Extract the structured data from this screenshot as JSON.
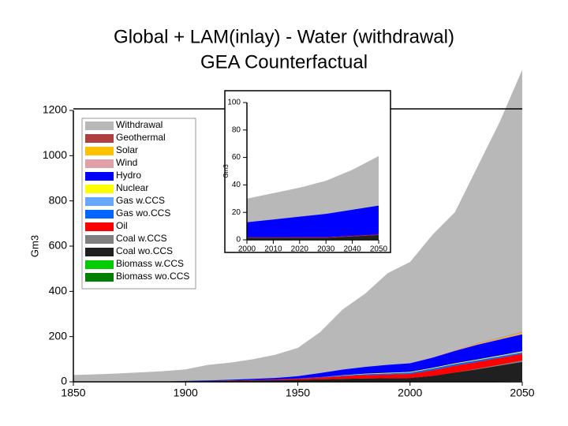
{
  "chart_data": [
    {
      "type": "area",
      "title": [
        "Global + LAM(inlay) - Water (withdrawal)",
        "GEA Counterfactual"
      ],
      "y_label": "Gm3",
      "x": [
        1850,
        1860,
        1870,
        1880,
        1890,
        1900,
        1910,
        1920,
        1930,
        1940,
        1950,
        1960,
        1970,
        1980,
        1990,
        2000,
        2010,
        2020,
        2030,
        2040,
        2050
      ],
      "xlim": [
        1850,
        2050
      ],
      "xticks": [
        1850,
        1900,
        1950,
        2000,
        2050
      ],
      "ylim": [
        0,
        1200
      ],
      "yticks": [
        0,
        200,
        400,
        600,
        800,
        1000,
        1200
      ],
      "legend": true,
      "series": [
        {
          "name": "Withdrawal",
          "color": "#b8b8b8",
          "stack": false,
          "values": [
            30,
            33,
            37,
            42,
            47,
            55,
            75,
            85,
            100,
            120,
            150,
            220,
            320,
            390,
            480,
            530,
            650,
            750,
            950,
            1150,
            1380
          ]
        },
        {
          "name": "Geothermal",
          "color": "#b04040",
          "values": [
            0,
            0,
            0,
            0,
            0,
            0,
            0,
            0,
            0,
            0,
            0,
            0,
            0,
            0,
            0,
            0,
            0,
            0,
            1,
            1,
            1
          ]
        },
        {
          "name": "Solar",
          "color": "#ffc000",
          "values": [
            0,
            0,
            0,
            0,
            0,
            0,
            0,
            0,
            0,
            0,
            0,
            0,
            0,
            0,
            0,
            0,
            0,
            1,
            2,
            3,
            5
          ]
        },
        {
          "name": "Wind",
          "color": "#e0a0a8",
          "values": [
            0,
            0,
            0,
            0,
            0,
            0,
            0,
            0,
            0,
            0,
            0,
            0,
            0,
            0,
            0,
            0,
            1,
            2,
            3,
            3,
            4
          ]
        },
        {
          "name": "Hydro",
          "color": "#0000ff",
          "values": [
            0,
            0,
            0,
            0,
            0,
            1,
            2,
            3,
            5,
            7,
            10,
            18,
            25,
            30,
            35,
            38,
            45,
            55,
            65,
            70,
            75
          ]
        },
        {
          "name": "Nuclear",
          "color": "#ffff00",
          "values": [
            0,
            0,
            0,
            0,
            0,
            0,
            0,
            0,
            0,
            0,
            0,
            0,
            1,
            2,
            3,
            3,
            3,
            3,
            3,
            3,
            3
          ]
        },
        {
          "name": "Gas w.CCS",
          "color": "#66a8ff",
          "values": [
            0,
            0,
            0,
            0,
            0,
            0,
            0,
            0,
            0,
            0,
            0,
            0,
            0,
            0,
            0,
            0,
            0,
            0,
            1,
            2,
            3
          ]
        },
        {
          "name": "Gas wo.CCS",
          "color": "#0066ff",
          "values": [
            0,
            0,
            0,
            0,
            0,
            0,
            0,
            0,
            0,
            0,
            1,
            2,
            3,
            4,
            5,
            6,
            8,
            8,
            7,
            6,
            5
          ]
        },
        {
          "name": "Oil",
          "color": "#ff0000",
          "values": [
            0,
            0,
            0,
            0,
            0,
            0,
            0,
            1,
            2,
            3,
            5,
            8,
            12,
            15,
            16,
            18,
            25,
            30,
            30,
            30,
            30
          ]
        },
        {
          "name": "Coal w.CCS",
          "color": "#808080",
          "values": [
            0,
            0,
            0,
            0,
            0,
            0,
            0,
            0,
            0,
            0,
            0,
            0,
            0,
            0,
            0,
            0,
            0,
            0,
            2,
            4,
            6
          ]
        },
        {
          "name": "Coal wo.CCS",
          "color": "#202020",
          "values": [
            0,
            0,
            0,
            0,
            0,
            2,
            3,
            4,
            5,
            6,
            8,
            10,
            12,
            14,
            15,
            16,
            25,
            40,
            55,
            70,
            85
          ]
        },
        {
          "name": "Biomass w.CCS",
          "color": "#00cc00",
          "values": [
            0,
            0,
            0,
            0,
            0,
            0,
            0,
            0,
            0,
            0,
            0,
            0,
            0,
            0,
            0,
            0,
            0,
            0,
            0,
            1,
            2
          ]
        },
        {
          "name": "Biomass wo.CCS",
          "color": "#008000",
          "values": [
            1,
            1,
            1,
            1,
            1,
            1,
            1,
            1,
            1,
            1,
            1,
            1,
            1,
            1,
            1,
            1,
            1,
            1,
            1,
            1,
            1
          ]
        }
      ]
    },
    {
      "type": "area",
      "y_label": "Gm3",
      "x": [
        2000,
        2010,
        2020,
        2030,
        2040,
        2050
      ],
      "xlim": [
        2000,
        2050
      ],
      "xticks": [
        2000,
        2010,
        2020,
        2030,
        2040,
        2050
      ],
      "ylim": [
        0,
        100
      ],
      "yticks": [
        0,
        20,
        40,
        60,
        80,
        100
      ],
      "legend": false,
      "series": [
        {
          "name": "Withdrawal",
          "color": "#b8b8b8",
          "stack": false,
          "values": [
            30,
            34,
            38,
            43,
            51,
            61
          ]
        },
        {
          "name": "Hydro",
          "color": "#0000ff",
          "values": [
            11,
            13,
            15,
            17,
            19,
            21
          ]
        },
        {
          "name": "Oil",
          "color": "#ff0000",
          "values": [
            0.3,
            0.3,
            0.4,
            0.4,
            0.4,
            0.4
          ]
        },
        {
          "name": "Coal wo.CCS",
          "color": "#202020",
          "values": [
            1,
            1,
            1,
            1,
            2,
            3
          ]
        },
        {
          "name": "Biomass wo.CCS",
          "color": "#008000",
          "values": [
            0.5,
            0.5,
            0.5,
            0.5,
            0.5,
            0.5
          ]
        }
      ]
    }
  ]
}
